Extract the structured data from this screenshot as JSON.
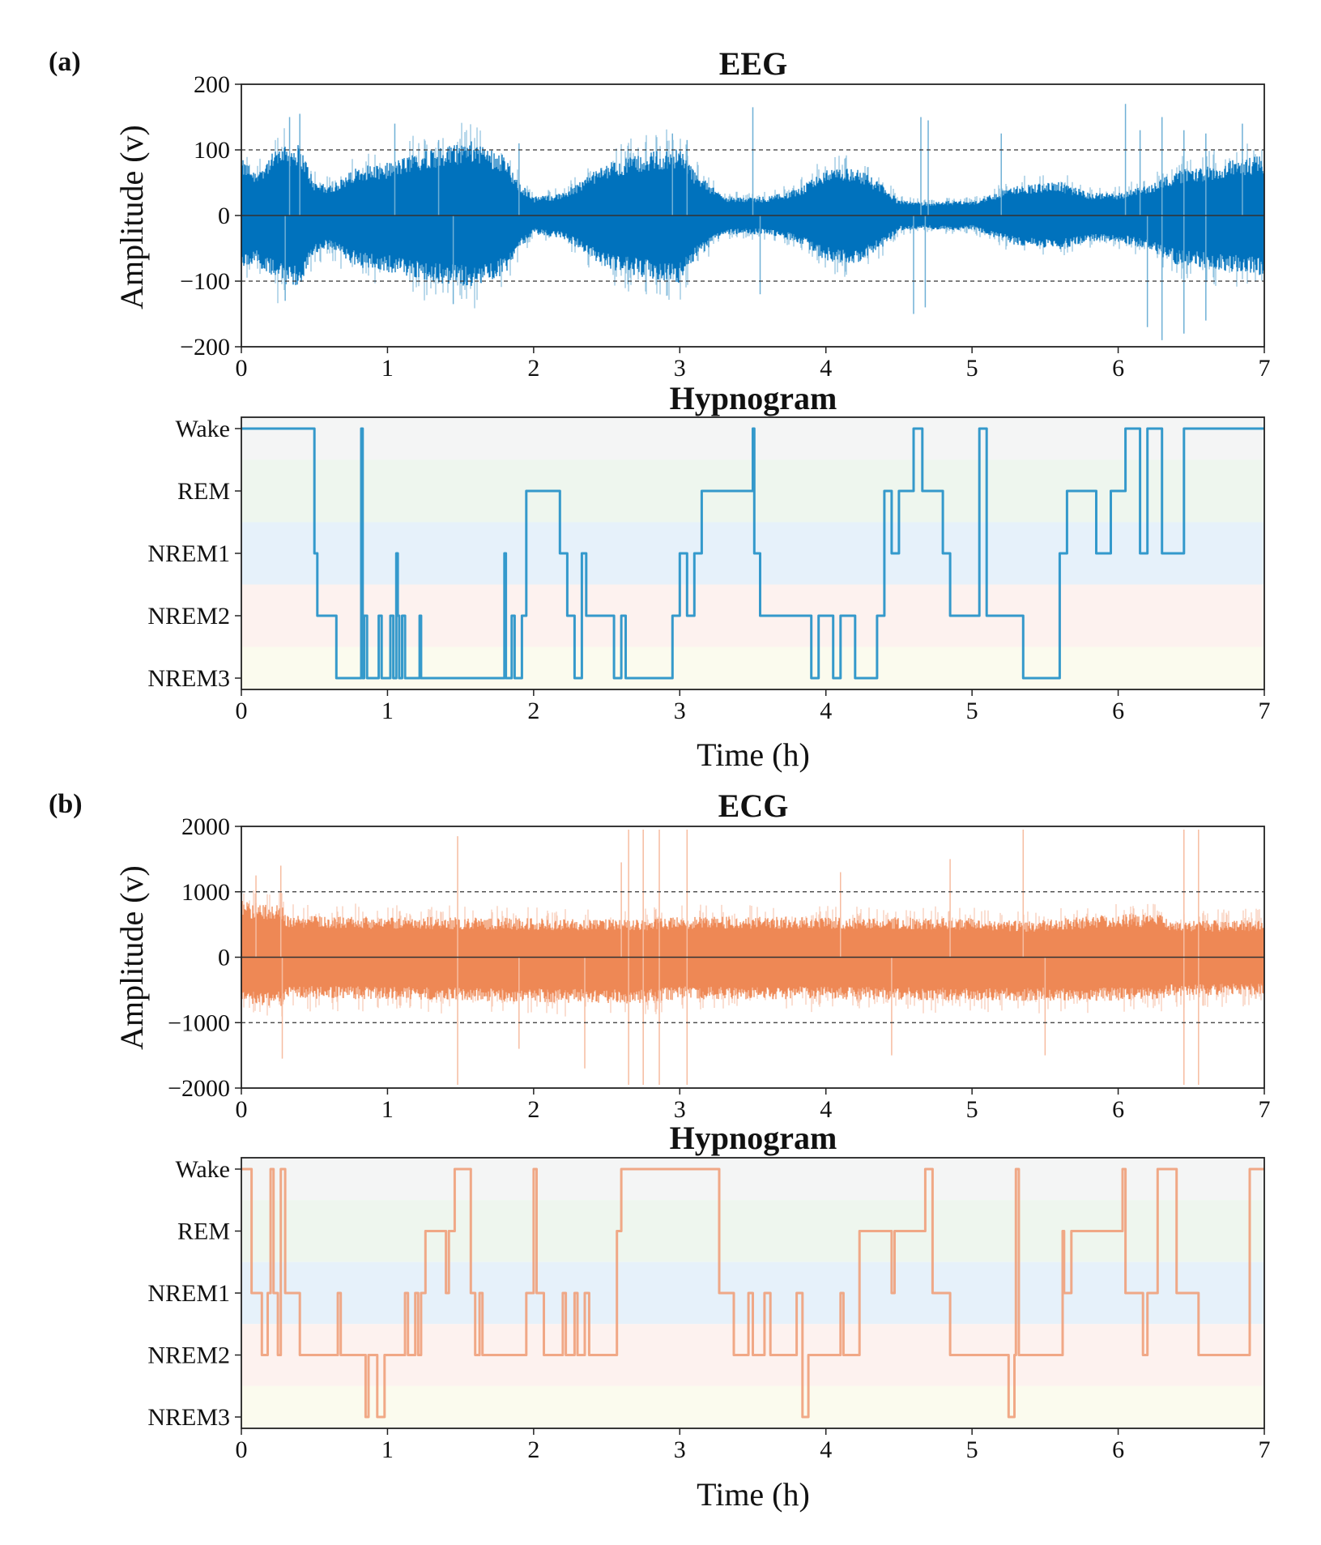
{
  "figure": {
    "panels": [
      {
        "label": "(a)",
        "signal_title": "EEG",
        "hypnogram_title": "Hypnogram"
      },
      {
        "label": "(b)",
        "signal_title": "ECG",
        "hypnogram_title": "Hypnogram"
      }
    ],
    "colors": {
      "eeg": "#0072bd",
      "eeg_light": "#6fb0d6",
      "ecg": "#ee8855",
      "ecg_light": "#f6bca0",
      "hyp_eeg": "#1f8fc6",
      "hyp_ecg": "#f0a07a",
      "band_wake": "#f4f5f5",
      "band_rem": "#eef6ee",
      "band_nrem1": "#e6f1fa",
      "band_nrem2": "#fdf2ef",
      "band_nrem3": "#fbfbee"
    }
  },
  "chart_data": [
    {
      "type": "line",
      "title": "EEG",
      "panel": "(a)",
      "xlabel": "",
      "ylabel": "Amplitude (v)",
      "xlim": [
        0,
        7
      ],
      "ylim": [
        -200,
        200
      ],
      "xticks": [
        "0",
        "1",
        "2",
        "3",
        "4",
        "5",
        "6",
        "7"
      ],
      "yticks": [
        "200",
        "100",
        "0",
        "−100",
        "−200"
      ],
      "ytick_values": [
        200,
        100,
        0,
        -100,
        -200
      ],
      "reference_lines": [
        {
          "y": 100,
          "style": "dashed"
        },
        {
          "y": 0,
          "style": "solid"
        },
        {
          "y": -100,
          "style": "dashed"
        }
      ],
      "envelope": {
        "x": [
          0,
          0.1,
          0.25,
          0.4,
          0.5,
          0.6,
          0.8,
          1.0,
          1.3,
          1.6,
          1.8,
          1.9,
          2.0,
          2.2,
          2.5,
          2.8,
          3.0,
          3.1,
          3.3,
          3.6,
          3.8,
          4.0,
          4.2,
          4.4,
          4.5,
          4.7,
          4.9,
          5.0,
          5.3,
          5.6,
          5.8,
          6.0,
          6.2,
          6.4,
          6.6,
          6.8,
          7.0
        ],
        "upper": [
          75,
          60,
          90,
          95,
          45,
          40,
          65,
          70,
          90,
          100,
          80,
          45,
          25,
          30,
          70,
          85,
          90,
          60,
          25,
          25,
          35,
          60,
          65,
          40,
          20,
          18,
          20,
          18,
          40,
          45,
          30,
          30,
          40,
          60,
          65,
          75,
          80
        ],
        "lower": [
          -70,
          -65,
          -90,
          -95,
          -50,
          -45,
          -70,
          -75,
          -90,
          -95,
          -80,
          -45,
          -25,
          -30,
          -70,
          -85,
          -90,
          -60,
          -25,
          -25,
          -35,
          -60,
          -65,
          -40,
          -20,
          -18,
          -20,
          -18,
          -40,
          -45,
          -35,
          -35,
          -45,
          -65,
          -70,
          -75,
          -80
        ]
      },
      "spikes": [
        {
          "x": 0.4,
          "y": 155
        },
        {
          "x": 0.33,
          "y": 150
        },
        {
          "x": 1.05,
          "y": 140
        },
        {
          "x": 1.35,
          "y": 115
        },
        {
          "x": 1.9,
          "y": 110
        },
        {
          "x": 2.95,
          "y": 125
        },
        {
          "x": 3.05,
          "y": 115
        },
        {
          "x": 3.5,
          "y": 165
        },
        {
          "x": 4.65,
          "y": 150
        },
        {
          "x": 4.7,
          "y": 145
        },
        {
          "x": 5.2,
          "y": 125
        },
        {
          "x": 6.05,
          "y": 170
        },
        {
          "x": 6.15,
          "y": 130
        },
        {
          "x": 6.3,
          "y": 150
        },
        {
          "x": 6.45,
          "y": 130
        },
        {
          "x": 6.6,
          "y": 125
        },
        {
          "x": 6.85,
          "y": 140
        },
        {
          "x": 0.3,
          "y": -130
        },
        {
          "x": 1.45,
          "y": -135
        },
        {
          "x": 4.6,
          "y": -150
        },
        {
          "x": 4.68,
          "y": -140
        },
        {
          "x": 6.2,
          "y": -170
        },
        {
          "x": 6.3,
          "y": -190
        },
        {
          "x": 6.45,
          "y": -180
        },
        {
          "x": 6.6,
          "y": -160
        },
        {
          "x": 3.55,
          "y": -120
        }
      ]
    },
    {
      "type": "line",
      "title": "Hypnogram",
      "panel": "(a)",
      "xlabel": "Time (h)",
      "ylabel": "",
      "xlim": [
        0,
        7
      ],
      "xticks": [
        "0",
        "1",
        "2",
        "3",
        "4",
        "5",
        "6",
        "7"
      ],
      "stages": [
        "Wake",
        "REM",
        "NREM1",
        "NREM2",
        "NREM3"
      ],
      "step_x": [
        0,
        0.5,
        0.52,
        0.55,
        0.65,
        0.68,
        0.82,
        0.83,
        0.84,
        0.86,
        0.88,
        0.94,
        0.96,
        1.02,
        1.04,
        1.06,
        1.07,
        1.08,
        1.1,
        1.12,
        1.15,
        1.22,
        1.23,
        1.8,
        1.81,
        1.85,
        1.87,
        1.92,
        1.95,
        2.18,
        2.23,
        2.28,
        2.33,
        2.36,
        2.4,
        2.55,
        2.6,
        2.63,
        2.7,
        2.95,
        3.0,
        3.05,
        3.1,
        3.15,
        3.25,
        3.5,
        3.51,
        3.55,
        3.6,
        3.9,
        3.95,
        4.05,
        4.1,
        4.2,
        4.35,
        4.4,
        4.45,
        4.5,
        4.6,
        4.66,
        4.8,
        4.85,
        5.05,
        5.1,
        5.35,
        5.6,
        5.65,
        5.85,
        5.95,
        6.05,
        6.15,
        6.2,
        6.3,
        6.45,
        6.5,
        7.0
      ],
      "step_stage": [
        "Wake",
        "NREM1",
        "NREM2",
        "NREM2",
        "NREM3",
        "NREM3",
        "Wake",
        "NREM3",
        "NREM2",
        "NREM3",
        "NREM3",
        "NREM2",
        "NREM3",
        "NREM2",
        "NREM3",
        "NREM1",
        "NREM2",
        "NREM3",
        "NREM2",
        "NREM3",
        "NREM3",
        "NREM2",
        "NREM3",
        "NREM1",
        "NREM3",
        "NREM2",
        "NREM3",
        "NREM2",
        "REM",
        "NREM1",
        "NREM2",
        "NREM3",
        "NREM1",
        "NREM2",
        "NREM2",
        "NREM3",
        "NREM2",
        "NREM3",
        "NREM3",
        "NREM2",
        "NREM1",
        "NREM2",
        "NREM1",
        "REM",
        "REM",
        "Wake",
        "NREM1",
        "NREM2",
        "NREM2",
        "NREM3",
        "NREM2",
        "NREM3",
        "NREM2",
        "NREM3",
        "NREM2",
        "REM",
        "NREM1",
        "REM",
        "Wake",
        "REM",
        "NREM1",
        "NREM2",
        "Wake",
        "NREM2",
        "NREM3",
        "NREM1",
        "REM",
        "NREM1",
        "REM",
        "Wake",
        "NREM1",
        "Wake",
        "NREM1",
        "Wake",
        "Wake",
        "Wake"
      ]
    },
    {
      "type": "line",
      "title": "ECG",
      "panel": "(b)",
      "xlabel": "",
      "ylabel": "Amplitude (v)",
      "xlim": [
        0,
        7
      ],
      "ylim": [
        -2000,
        2000
      ],
      "xticks": [
        "0",
        "1",
        "2",
        "3",
        "4",
        "5",
        "6",
        "7"
      ],
      "yticks": [
        "2000",
        "1000",
        "0",
        "−1000",
        "−2000"
      ],
      "ytick_values": [
        2000,
        1000,
        0,
        -1000,
        -2000
      ],
      "reference_lines": [
        {
          "y": 1000,
          "style": "dashed"
        },
        {
          "y": 0,
          "style": "solid"
        },
        {
          "y": -1000,
          "style": "dashed"
        }
      ],
      "envelope": {
        "x": [
          0,
          0.28,
          0.3,
          1.0,
          2.0,
          2.7,
          3.0,
          4.0,
          5.0,
          5.4,
          6.0,
          6.3,
          6.35,
          7.0
        ],
        "upper": [
          750,
          700,
          560,
          540,
          520,
          500,
          540,
          540,
          520,
          480,
          580,
          560,
          480,
          500
        ],
        "lower": [
          -650,
          -650,
          -550,
          -560,
          -600,
          -620,
          -560,
          -560,
          -580,
          -580,
          -580,
          -560,
          -520,
          -500
        ]
      },
      "spikes": [
        {
          "x": 0.27,
          "y": 1400
        },
        {
          "x": 0.1,
          "y": 1250
        },
        {
          "x": 1.48,
          "y": 1850
        },
        {
          "x": 2.65,
          "y": 1950
        },
        {
          "x": 2.75,
          "y": 1950
        },
        {
          "x": 2.86,
          "y": 1950
        },
        {
          "x": 3.05,
          "y": 1950
        },
        {
          "x": 2.6,
          "y": 1450
        },
        {
          "x": 4.1,
          "y": 1300
        },
        {
          "x": 4.85,
          "y": 1500
        },
        {
          "x": 5.35,
          "y": 1950
        },
        {
          "x": 6.45,
          "y": 1950
        },
        {
          "x": 6.55,
          "y": 1950
        },
        {
          "x": 0.28,
          "y": -1550
        },
        {
          "x": 1.48,
          "y": -1950
        },
        {
          "x": 1.9,
          "y": -1400
        },
        {
          "x": 2.35,
          "y": -1700
        },
        {
          "x": 2.65,
          "y": -1950
        },
        {
          "x": 2.75,
          "y": -1950
        },
        {
          "x": 2.86,
          "y": -1950
        },
        {
          "x": 3.05,
          "y": -1950
        },
        {
          "x": 4.45,
          "y": -1500
        },
        {
          "x": 5.5,
          "y": -1500
        },
        {
          "x": 6.45,
          "y": -1950
        },
        {
          "x": 6.55,
          "y": -1950
        }
      ]
    },
    {
      "type": "line",
      "title": "Hypnogram",
      "panel": "(b)",
      "xlabel": "Time (h)",
      "ylabel": "",
      "xlim": [
        0,
        7
      ],
      "xticks": [
        "0",
        "1",
        "2",
        "3",
        "4",
        "5",
        "6",
        "7"
      ],
      "stages": [
        "Wake",
        "REM",
        "NREM1",
        "NREM2",
        "NREM3"
      ],
      "step_x": [
        0,
        0.07,
        0.14,
        0.18,
        0.2,
        0.22,
        0.25,
        0.27,
        0.3,
        0.32,
        0.4,
        0.66,
        0.68,
        0.85,
        0.87,
        0.93,
        0.98,
        1.12,
        1.14,
        1.19,
        1.21,
        1.23,
        1.26,
        1.4,
        1.42,
        1.46,
        1.57,
        1.6,
        1.63,
        1.65,
        1.95,
        2.0,
        2.02,
        2.07,
        2.2,
        2.22,
        2.28,
        2.3,
        2.35,
        2.38,
        2.57,
        2.6,
        3.27,
        3.32,
        3.37,
        3.47,
        3.5,
        3.58,
        3.62,
        3.8,
        3.84,
        3.88,
        4.1,
        4.12,
        4.23,
        4.45,
        4.47,
        4.68,
        4.73,
        4.85,
        5.18,
        5.25,
        5.29,
        5.3,
        5.32,
        5.62,
        5.63,
        5.68,
        5.95,
        6.03,
        6.05,
        6.17,
        6.2,
        6.27,
        6.3,
        6.4,
        6.55,
        6.6,
        6.9,
        6.95,
        7.0
      ],
      "step_stage": [
        "Wake",
        "NREM1",
        "NREM2",
        "NREM1",
        "Wake",
        "NREM1",
        "NREM2",
        "Wake",
        "NREM1",
        "NREM1",
        "NREM2",
        "NREM1",
        "NREM2",
        "NREM3",
        "NREM2",
        "NREM3",
        "NREM2",
        "NREM1",
        "NREM2",
        "NREM1",
        "NREM2",
        "NREM1",
        "REM",
        "NREM1",
        "REM",
        "Wake",
        "NREM1",
        "NREM2",
        "NREM1",
        "NREM2",
        "NREM1",
        "Wake",
        "NREM1",
        "NREM2",
        "NREM1",
        "NREM2",
        "NREM1",
        "NREM2",
        "NREM1",
        "NREM2",
        "REM",
        "Wake",
        "NREM1",
        "NREM1",
        "NREM2",
        "NREM1",
        "NREM2",
        "NREM1",
        "NREM2",
        "NREM1",
        "NREM3",
        "NREM2",
        "NREM1",
        "NREM2",
        "REM",
        "NREM1",
        "REM",
        "Wake",
        "NREM1",
        "NREM2",
        "NREM2",
        "NREM3",
        "NREM2",
        "Wake",
        "NREM2",
        "REM",
        "NREM1",
        "REM",
        "REM",
        "Wake",
        "NREM1",
        "NREM2",
        "NREM1",
        "Wake",
        "Wake",
        "NREM1",
        "NREM2",
        "NREM2",
        "Wake",
        "Wake",
        "Wake"
      ]
    }
  ]
}
